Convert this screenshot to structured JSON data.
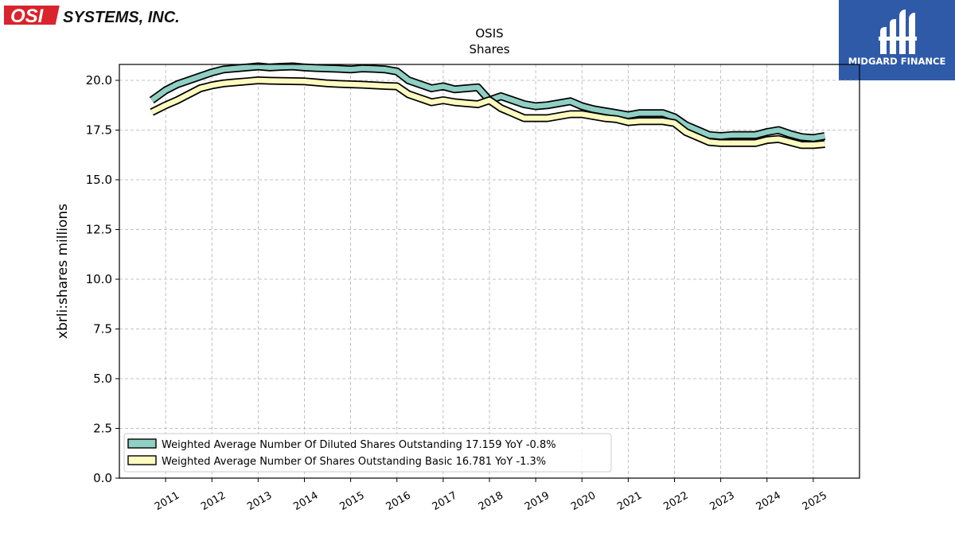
{
  "header": {
    "company_logo_mark": "OSI",
    "company_logo_name": "SYSTEMS, INC.",
    "brand_logo_text": "MIDGARD FINANCE"
  },
  "colors": {
    "logo_red": "#d9232d",
    "brand_blue": "#2f5aa8",
    "diluted_fill": "#8fcfc4",
    "basic_fill": "#fdfbbf"
  },
  "chart_data": {
    "type": "line",
    "title": "OSIS",
    "subtitle": "Shares",
    "xlabel": "",
    "ylabel": "xbrli:shares millions",
    "ylim": [
      0,
      20.8
    ],
    "xlim": [
      2010.0,
      2026.0
    ],
    "grid": true,
    "legend_position": "lower-left",
    "x_ticks": [
      "2011",
      "2012",
      "2013",
      "2014",
      "2015",
      "2016",
      "2017",
      "2018",
      "2019",
      "2020",
      "2021",
      "2022",
      "2023",
      "2024",
      "2025"
    ],
    "y_ticks": [
      "0.0",
      "2.5",
      "5.0",
      "7.5",
      "10.0",
      "12.5",
      "15.0",
      "17.5",
      "20.0"
    ],
    "x": [
      2010.7,
      2011.0,
      2011.25,
      2011.5,
      2011.75,
      2012.0,
      2012.25,
      2012.5,
      2012.75,
      2013.0,
      2013.25,
      2013.5,
      2013.75,
      2014.0,
      2014.25,
      2014.5,
      2014.75,
      2015.0,
      2015.25,
      2015.5,
      2015.75,
      2016.0,
      2016.25,
      2016.5,
      2016.75,
      2017.0,
      2017.25,
      2017.5,
      2017.75,
      2018.0,
      2018.25,
      2018.5,
      2018.75,
      2019.0,
      2019.25,
      2019.5,
      2019.75,
      2020.0,
      2020.25,
      2020.5,
      2020.75,
      2021.0,
      2021.25,
      2021.5,
      2021.75,
      2022.0,
      2022.25,
      2022.5,
      2022.75,
      2023.0,
      2023.25,
      2023.5,
      2023.75,
      2024.0,
      2024.25,
      2024.5,
      2024.75,
      2025.0,
      2025.25
    ],
    "series": [
      {
        "name": "Weighted Average Number Of Diluted Shares Outstanding",
        "legend_label": "Weighted Average Number Of Diluted Shares Outstanding  17.159 YoY -0.8%",
        "values": [
          19.0,
          19.5,
          19.8,
          20.0,
          20.2,
          20.4,
          20.55,
          20.6,
          20.65,
          20.7,
          20.65,
          20.68,
          20.7,
          20.65,
          20.62,
          20.6,
          20.58,
          20.55,
          20.6,
          20.58,
          20.55,
          20.45,
          20.0,
          19.8,
          19.6,
          19.7,
          19.55,
          19.6,
          19.65,
          19.0,
          19.2,
          19.0,
          18.8,
          18.7,
          18.75,
          18.85,
          18.95,
          18.7,
          18.55,
          18.45,
          18.35,
          18.25,
          18.35,
          18.35,
          18.35,
          18.15,
          17.75,
          17.5,
          17.25,
          17.2,
          17.25,
          17.25,
          17.25,
          17.4,
          17.5,
          17.3,
          17.15,
          17.1,
          17.2
        ]
      },
      {
        "name": "Weighted Average Number Of Shares Outstanding Basic",
        "legend_label": "Weighted Average Number Of Shares Outstanding Basic  16.781 YoY -1.3%",
        "values": [
          18.4,
          18.75,
          19.0,
          19.3,
          19.6,
          19.75,
          19.85,
          19.9,
          19.95,
          20.0,
          19.98,
          19.97,
          19.96,
          19.95,
          19.9,
          19.85,
          19.82,
          19.8,
          19.78,
          19.75,
          19.72,
          19.7,
          19.3,
          19.1,
          18.9,
          19.0,
          18.9,
          18.85,
          18.8,
          19.0,
          18.6,
          18.35,
          18.1,
          18.1,
          18.1,
          18.2,
          18.3,
          18.3,
          18.2,
          18.1,
          18.05,
          17.9,
          17.95,
          17.95,
          17.95,
          17.85,
          17.4,
          17.15,
          16.9,
          16.85,
          16.85,
          16.85,
          16.85,
          17.0,
          17.05,
          16.9,
          16.75,
          16.75,
          16.8
        ]
      }
    ]
  }
}
